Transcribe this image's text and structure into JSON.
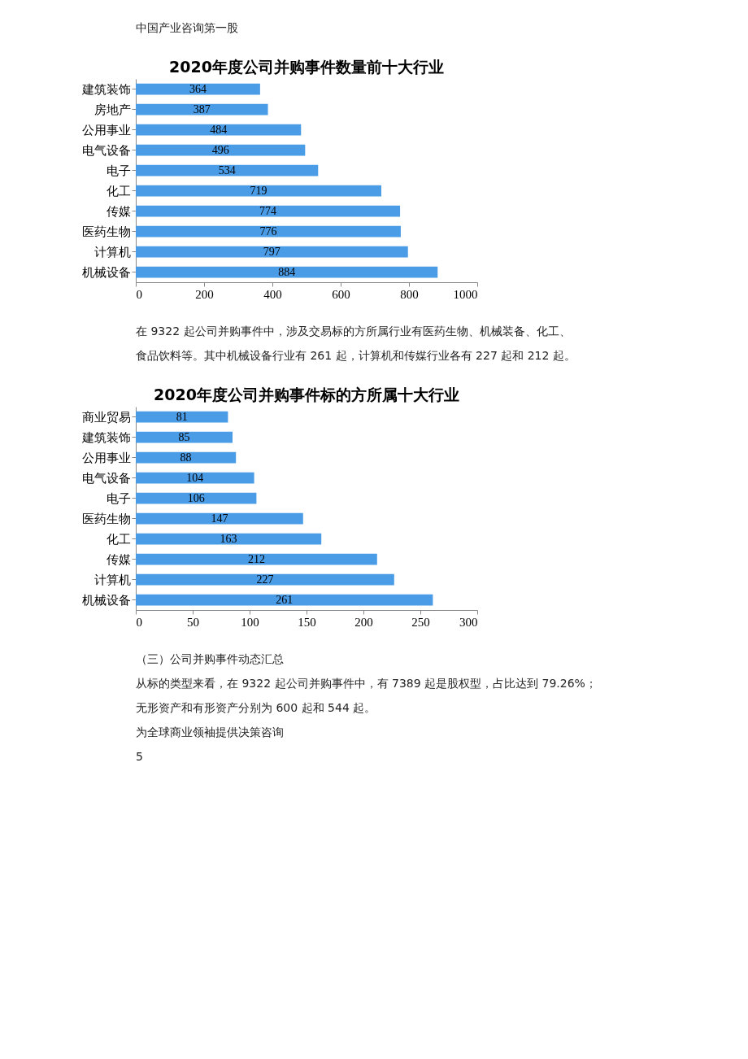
{
  "chart_data": [
    {
      "type": "other",
      "annotations": [
        "中国产业咨询第一股"
      ]
    },
    {
      "type": "bar",
      "orientation": "horizontal",
      "title": "2020年度公司并购事件数量前十大行业",
      "categories": [
        "建筑装饰",
        "房地产",
        "公用事业",
        "电气设备",
        "电子",
        "化工",
        "传媒",
        "医药生物",
        "计算机",
        "机械设备"
      ],
      "values": [
        364,
        387,
        484,
        496,
        534,
        719,
        774,
        776,
        797,
        884
      ],
      "color": "#4a9ce6",
      "xlim": [
        0,
        1000
      ],
      "xticks": [
        0,
        200,
        400,
        600,
        800,
        1000
      ],
      "data_labels": true,
      "grid": false
    },
    {
      "type": "other",
      "annotations": [
        "在 9322 起公司并购事件中，涉及交易标的方所属行业有医药生物、机械装备、化工、",
        "食品饮料等。其中机械设备行业有 261 起，计算机和传媒行业各有 227 起和 212 起。"
      ]
    },
    {
      "type": "bar",
      "orientation": "horizontal",
      "title": "2020年度公司并购事件标的方所属十大行业",
      "categories": [
        "商业贸易",
        "建筑装饰",
        "公用事业",
        "电气设备",
        "电子",
        "医药生物",
        "化工",
        "传媒",
        "计算机",
        "机械设备"
      ],
      "values": [
        81,
        85,
        88,
        104,
        106,
        147,
        163,
        212,
        227,
        261
      ],
      "color": "#4a9ce6",
      "xlim": [
        0,
        300
      ],
      "xticks": [
        0,
        50,
        100,
        150,
        200,
        250,
        300
      ],
      "data_labels": true,
      "grid": false
    },
    {
      "type": "other",
      "annotations": [
        "（三）公司并购事件动态汇总",
        "从标的类型来看，在 9322 起公司并购事件中，有 7389 起是股权型，占比达到 79.26%；",
        "无形资产和有形资产分别为 600 起和 544 起。",
        "为全球商业领袖提供决策咨询",
        "5"
      ]
    }
  ]
}
